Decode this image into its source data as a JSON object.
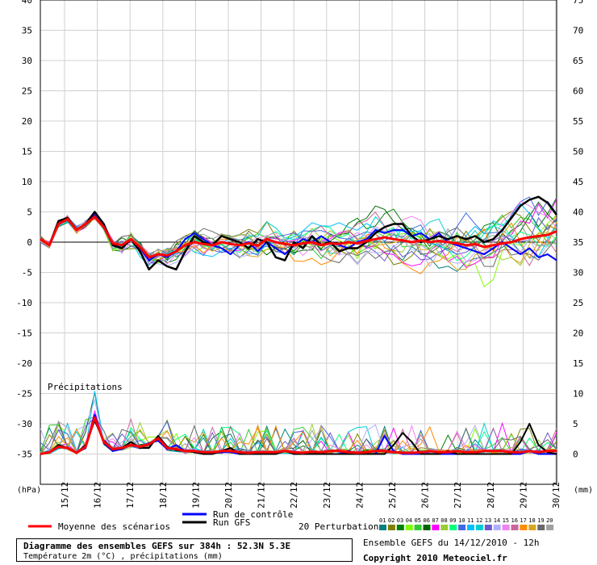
{
  "chart_data": {
    "type": "line",
    "title": "Diagramme des ensembles GEFS sur 384h : 52.3N 5.3E",
    "subtitle": "Température 2m (°C) , précipitations (mm)",
    "left_axis_unit": "(hPa)",
    "right_axis_unit": "(mm)",
    "left_ticks": [
      40,
      35,
      30,
      25,
      20,
      15,
      10,
      5,
      0,
      -5,
      -10,
      -15,
      -20,
      -25,
      -30,
      -35
    ],
    "right_ticks": [
      75,
      70,
      65,
      60,
      55,
      50,
      45,
      40,
      35,
      30,
      25,
      20,
      15,
      10,
      5,
      0
    ],
    "temp_ylim": [
      -40,
      40
    ],
    "precip_baseline_temp": -35,
    "x_labels": [
      "15/12",
      "16/12",
      "17/12",
      "18/12",
      "19/12",
      "20/12",
      "21/12",
      "22/12",
      "23/12",
      "24/12",
      "25/12",
      "26/12",
      "27/12",
      "28/12",
      "29/12",
      "30/12"
    ],
    "precip_label": "Précipitations",
    "legend": {
      "mean": "Moyenne des scénarios",
      "control": "Run de contrôle",
      "gfs": "Run GFS",
      "perturbations": "20 Perturbations",
      "perturbation_ids": [
        "01",
        "02",
        "03",
        "04",
        "05",
        "06",
        "07",
        "08",
        "09",
        "10",
        "11",
        "12",
        "13",
        "14",
        "15",
        "16",
        "17",
        "18",
        "19",
        "20"
      ]
    },
    "colors": {
      "mean": "#ff0000",
      "control": "#0000ff",
      "gfs": "#000000",
      "perturbations": [
        "#008080",
        "#808000",
        "#008000",
        "#7fff00",
        "#32cd32",
        "#006400",
        "#ff00ff",
        "#9acd32",
        "#00ff7f",
        "#4169e1",
        "#00bfff",
        "#00ced1",
        "#6a5acd",
        "#b0b0ff",
        "#ee82ee",
        "#cc6699",
        "#ff8c00",
        "#daa520",
        "#696969",
        "#a0a0a0"
      ]
    },
    "series": {
      "gfs_temp": [
        0.5,
        -0.5,
        3.5,
        4.0,
        2.0,
        3.0,
        5.0,
        3.0,
        -0.5,
        -1.0,
        0.5,
        -1.5,
        -4.5,
        -3.0,
        -4.0,
        -4.5,
        -1.5,
        1.0,
        0.0,
        -0.5,
        1.0,
        0.5,
        0.0,
        -1.0,
        0.5,
        0.0,
        -2.5,
        -3.0,
        0.0,
        -1.0,
        1.0,
        -0.5,
        0.0,
        -1.5,
        -1.0,
        -1.0,
        0.0,
        1.5,
        2.5,
        3.0,
        3.0,
        1.0,
        0.0,
        0.5,
        1.0,
        0.5,
        1.0,
        0.5,
        1.0,
        0.0,
        0.5,
        2.0,
        4.0,
        6.0,
        7.0,
        7.5,
        6.5,
        4.5
      ],
      "control_temp": [
        0.5,
        -0.5,
        3.5,
        4.0,
        2.0,
        3.0,
        4.5,
        2.5,
        -0.5,
        -1.0,
        0.5,
        -1.0,
        -3.0,
        -2.0,
        -2.5,
        -1.5,
        0.5,
        1.5,
        0.5,
        -0.5,
        -1.0,
        -2.0,
        -0.5,
        0.0,
        -1.5,
        0.0,
        -1.0,
        -2.0,
        -0.5,
        0.5,
        0.0,
        1.0,
        0.0,
        -0.5,
        -1.0,
        0.0,
        0.5,
        2.0,
        1.5,
        2.0,
        2.0,
        1.0,
        1.5,
        0.5,
        1.5,
        0.0,
        -0.5,
        -1.0,
        -1.5,
        -2.0,
        -1.0,
        0.0,
        -1.0,
        -2.0,
        -1.0,
        -2.5,
        -2.0,
        -3.0
      ],
      "mean_temp": [
        0.5,
        -0.5,
        3.0,
        3.8,
        2.0,
        3.0,
        4.2,
        2.5,
        -0.2,
        -0.5,
        0.5,
        -0.8,
        -2.5,
        -2.0,
        -2.2,
        -1.5,
        -0.5,
        0.0,
        -0.3,
        -0.5,
        0.0,
        -0.3,
        -0.5,
        -0.2,
        -0.6,
        0.5,
        0.0,
        -0.3,
        -0.5,
        -0.2,
        0.0,
        -0.5,
        -0.2,
        -0.3,
        0.0,
        -0.2,
        0.2,
        0.5,
        0.8,
        0.5,
        0.3,
        0.0,
        0.3,
        0.0,
        0.2,
        0.0,
        -0.2,
        -0.5,
        -0.3,
        -0.8,
        -0.5,
        -0.2,
        0.0,
        0.5,
        0.8,
        1.0,
        1.2,
        1.8
      ],
      "mean_precip": [
        0,
        0.3,
        1.2,
        1.0,
        0.2,
        1.2,
        6.0,
        2.0,
        0.8,
        1.0,
        1.5,
        1.2,
        1.6,
        2.6,
        1.0,
        0.8,
        0.5,
        0.5,
        0.3,
        0.3,
        0.5,
        0.5,
        0.3,
        0.2,
        0.3,
        0.3,
        0.3,
        0.5,
        0.3,
        0.2,
        0.4,
        0.3,
        0.5,
        0.5,
        0.3,
        0.2,
        0.3,
        0.5,
        0.5,
        0.3,
        0.2,
        0.2,
        0.3,
        0.5,
        0.3,
        0.3,
        0.5,
        0.3,
        0.3,
        0.5,
        0.5,
        0.5,
        0.3,
        0.3,
        0.5,
        0.3,
        0.5,
        0.5
      ],
      "gfs_precip": [
        0,
        0.3,
        1.5,
        1.0,
        0.2,
        1.5,
        5.5,
        2.2,
        0.8,
        1.0,
        2.0,
        1.0,
        1.0,
        3.0,
        1.2,
        0.6,
        0.5,
        0.3,
        0,
        0,
        0.5,
        1.0,
        0,
        0,
        0,
        0,
        0,
        0.5,
        0,
        0,
        0,
        0,
        0,
        0,
        0,
        0,
        0,
        0,
        0,
        1.5,
        3.5,
        2.0,
        0,
        0,
        0,
        0.5,
        0,
        0,
        0,
        0,
        0,
        0,
        0,
        2.0,
        5.0,
        1.5,
        0.3,
        0
      ],
      "control_precip": [
        0,
        0.3,
        1.2,
        1.0,
        0.2,
        1.0,
        6.5,
        1.8,
        0.5,
        0.8,
        1.5,
        1.2,
        1.8,
        2.2,
        0.8,
        1.5,
        0.5,
        0.5,
        0,
        0.2,
        0.3,
        0.3,
        0,
        0,
        0,
        0,
        0.2,
        0.5,
        0.3,
        0,
        0,
        0,
        0,
        0,
        0.5,
        0,
        0,
        0,
        3.0,
        0.5,
        0,
        0,
        0,
        0,
        0,
        0,
        0,
        0,
        0,
        0,
        0,
        0,
        0,
        0,
        0.5,
        0,
        0,
        0
      ]
    }
  }
}
